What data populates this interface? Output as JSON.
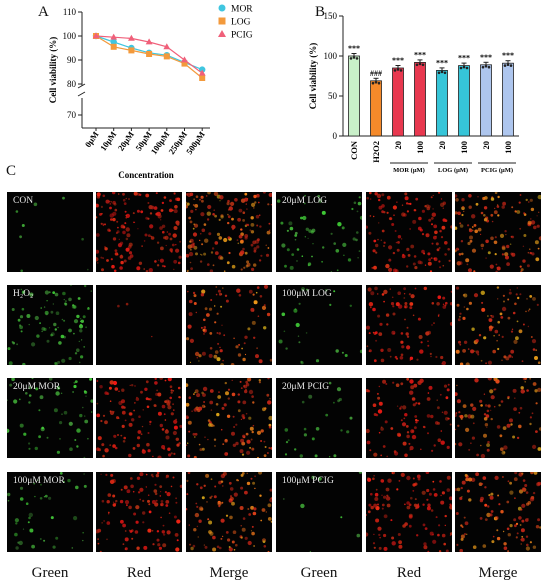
{
  "panels": {
    "a": "A",
    "b": "B",
    "c": "C"
  },
  "chart_data": [
    {
      "type": "line",
      "panel": "A",
      "xlabel": "Concentration",
      "ylabel": "Cell viability (%)",
      "categories": [
        "0μM",
        "10μM",
        "20μM",
        "50μM",
        "100μM",
        "250μM",
        "500μM"
      ],
      "ylim": [
        70,
        110
      ],
      "y_axis_break_below": 80,
      "yticks": [
        "70",
        "80",
        "90",
        "100",
        "110"
      ],
      "legend_position": "top-right",
      "series": [
        {
          "name": "MOR",
          "values": [
            100,
            97.5,
            95,
            93,
            92,
            89,
            86
          ],
          "color": "#3fc6e0",
          "marker": "circle"
        },
        {
          "name": "LOG",
          "values": [
            100,
            95.5,
            94,
            92.5,
            91.5,
            88.5,
            82.5
          ],
          "color": "#f39a3c",
          "marker": "square"
        },
        {
          "name": "PCIG",
          "values": [
            100,
            99.5,
            99,
            97.5,
            95.5,
            90,
            84.5
          ],
          "color": "#f0607a",
          "marker": "triangle"
        }
      ]
    },
    {
      "type": "bar",
      "panel": "B",
      "ylabel": "Cell viability (%)",
      "categories": [
        "CON",
        "H2O2",
        "20",
        "100",
        "20",
        "100",
        "20",
        "100"
      ],
      "groups": [
        {
          "label": "MOR (μM)",
          "from": 2,
          "to": 3
        },
        {
          "label": "LOG (μM)",
          "from": 4,
          "to": 5
        },
        {
          "label": "PCIG (μM)",
          "from": 6,
          "to": 7
        }
      ],
      "values": [
        100,
        69,
        85,
        92,
        82,
        88,
        89,
        91
      ],
      "colors": [
        "#c9f0c9",
        "#f58a2a",
        "#e8384f",
        "#e8384f",
        "#36c5d8",
        "#36c5d8",
        "#aec6ee",
        "#aec6ee"
      ],
      "annotations": [
        "***",
        "###",
        "***",
        "***",
        "***",
        "***",
        "***",
        "***"
      ],
      "ylim": [
        0,
        150
      ],
      "yticks": [
        "0",
        "50",
        "100",
        "150"
      ]
    }
  ],
  "micrographs": {
    "row_labels_left": [
      "CON",
      "H₂O₂",
      "20μM MOR",
      "100μM MOR"
    ],
    "row_labels_right": [
      "20μM LOG",
      "100μM LOG",
      "20μM PCIG",
      "100μM PCIG"
    ],
    "columns": [
      "Green",
      "Red",
      "Merge",
      "Green",
      "Red",
      "Merge"
    ]
  },
  "colors": {
    "green_channel": "#3fae3f",
    "red_channel": "#d82020",
    "merge": "#c8a020"
  }
}
